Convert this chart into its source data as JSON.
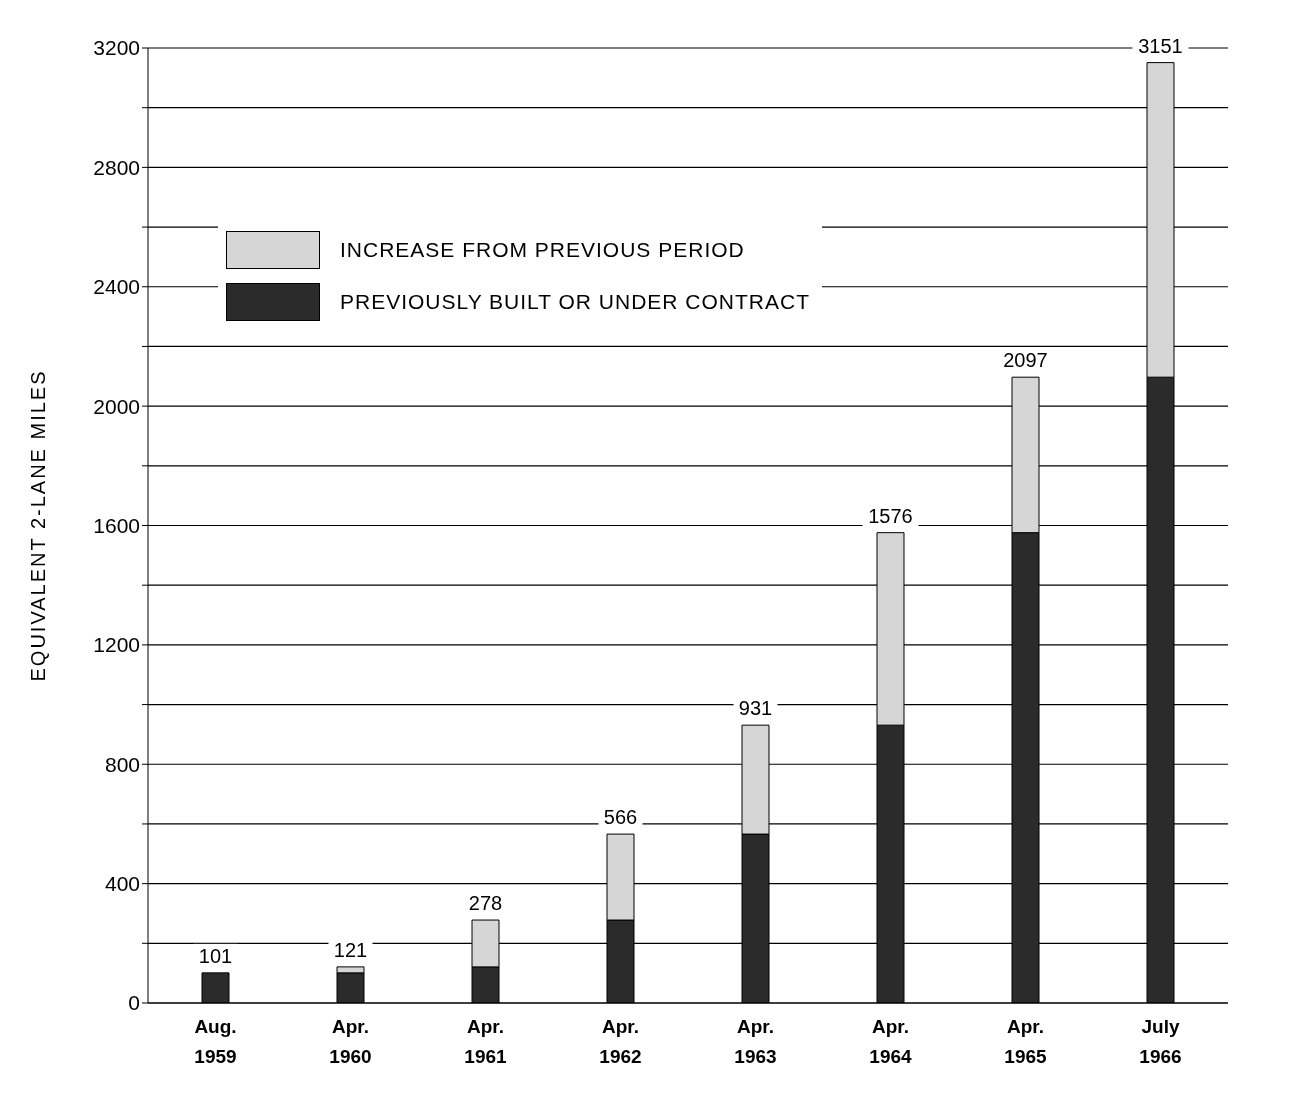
{
  "chart_data": {
    "type": "bar",
    "ylabel": "EQUIVALENT 2-LANE MILES",
    "categories": [
      "Aug. 1959",
      "Apr. 1960",
      "Apr. 1961",
      "Apr. 1962",
      "Apr. 1963",
      "Apr. 1964",
      "Apr. 1965",
      "July 1966"
    ],
    "stacked": true,
    "series": [
      {
        "name": "PREVIOUSLY BUILT OR UNDER CONTRACT",
        "color": "#2b2b2b",
        "values": [
          101,
          101,
          121,
          278,
          566,
          931,
          1576,
          2097
        ]
      },
      {
        "name": "INCREASE FROM PREVIOUS PERIOD",
        "color": "#d6d6d6",
        "values": [
          0,
          20,
          157,
          288,
          365,
          645,
          521,
          1054
        ]
      }
    ],
    "totals": [
      "101",
      "121",
      "278",
      "566",
      "931",
      "1576",
      "2097",
      "3151"
    ],
    "ylim": [
      0,
      3200
    ],
    "yticks": [
      0,
      {
        "value": 200,
        "label": null
      },
      400,
      {
        "value": 600,
        "label": null
      },
      800,
      {
        "value": 1000,
        "label": null
      },
      1200,
      {
        "value": 1400,
        "label": null
      },
      1600,
      {
        "value": 1800,
        "label": null
      },
      2000,
      {
        "value": 2200,
        "label": null
      },
      2400,
      {
        "value": 2600,
        "label": null
      },
      2800,
      {
        "value": 3000,
        "label": null
      },
      3200
    ],
    "grid": "y",
    "legend": "top left"
  }
}
